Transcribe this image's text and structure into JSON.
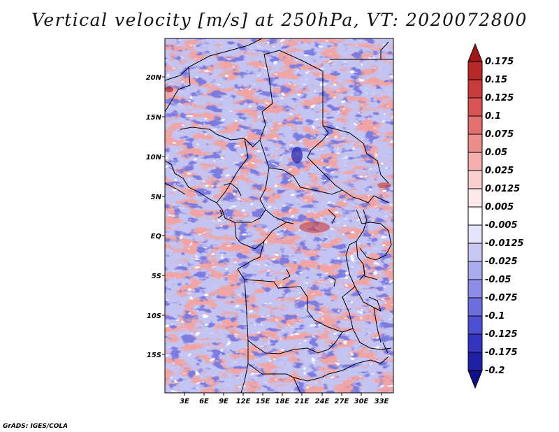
{
  "title": "Vertical velocity [m/s] at 250hPa, VT: 2020072800",
  "footer": "GrADS: IGES/COLA",
  "lat_labels": [
    "20N",
    "15N",
    "10N",
    "5N",
    "EQ",
    "5S",
    "10S",
    "15S"
  ],
  "lon_labels": [
    "3E",
    "6E",
    "9E",
    "12E",
    "15E",
    "18E",
    "21E",
    "24E",
    "27E",
    "30E",
    "33E"
  ],
  "colorbar": {
    "labels": [
      "0.175",
      "0.15",
      "0.125",
      "0.1",
      "0.075",
      "0.05",
      "0.025",
      "0.0125",
      "0.005",
      "-0.005",
      "-0.0125",
      "-0.025",
      "-0.05",
      "-0.075",
      "-0.1",
      "-0.125",
      "-0.175",
      "-0.2"
    ],
    "colors": [
      "#a01818",
      "#b82828",
      "#c83c3c",
      "#d85656",
      "#e37070",
      "#ec8e8e",
      "#f4aeae",
      "#f9cfcf",
      "#fde9e9",
      "#ffffff",
      "#e4e4fb",
      "#c8c8f5",
      "#aaaaee",
      "#8c8ce6",
      "#6e6ede",
      "#5050d2",
      "#3434c0",
      "#2020a4",
      "#101088"
    ]
  }
}
